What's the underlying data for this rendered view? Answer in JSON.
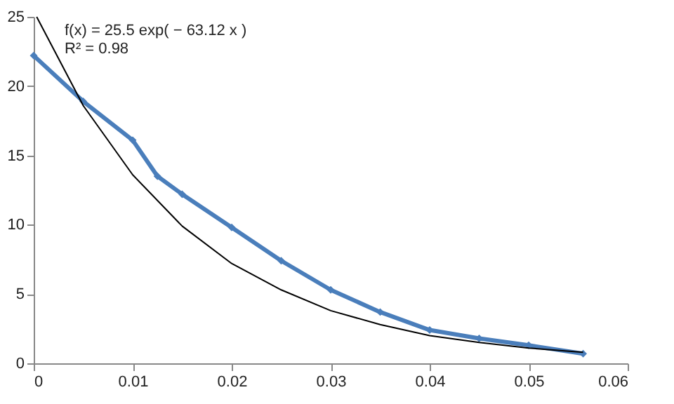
{
  "chart_data": {
    "type": "line",
    "xlim": [
      0,
      0.06
    ],
    "xticks": [
      0,
      0.01,
      0.02,
      0.03,
      0.04,
      0.05,
      0.06
    ],
    "ylim": [
      0,
      25
    ],
    "yticks": [
      0,
      5,
      10,
      15,
      20,
      25
    ],
    "grid": false,
    "annotations": [
      "f(x) = 25.5 exp( − 63.12 x )",
      "R² = 0.98"
    ],
    "series": [
      {
        "color": "#4a7ebb",
        "marker": "diamond",
        "x": [
          0,
          0.005,
          0.01,
          0.0125,
          0.015,
          0.02,
          0.025,
          0.03,
          0.035,
          0.04,
          0.045,
          0.05,
          0.0555
        ],
        "values": [
          22.2,
          18.9,
          16.1,
          13.5,
          12.2,
          9.8,
          7.4,
          5.3,
          3.7,
          2.4,
          1.8,
          1.3,
          0.7
        ]
      },
      {
        "type": "line",
        "color": "#000000",
        "marker": "none",
        "x": [
          0.0003,
          0.005,
          0.01,
          0.015,
          0.02,
          0.025,
          0.03,
          0.035,
          0.04,
          0.045,
          0.05,
          0.0555
        ],
        "values": [
          25.0,
          18.6,
          13.6,
          9.9,
          7.2,
          5.3,
          3.8,
          2.8,
          2.0,
          1.5,
          1.1,
          0.8
        ]
      }
    ]
  }
}
